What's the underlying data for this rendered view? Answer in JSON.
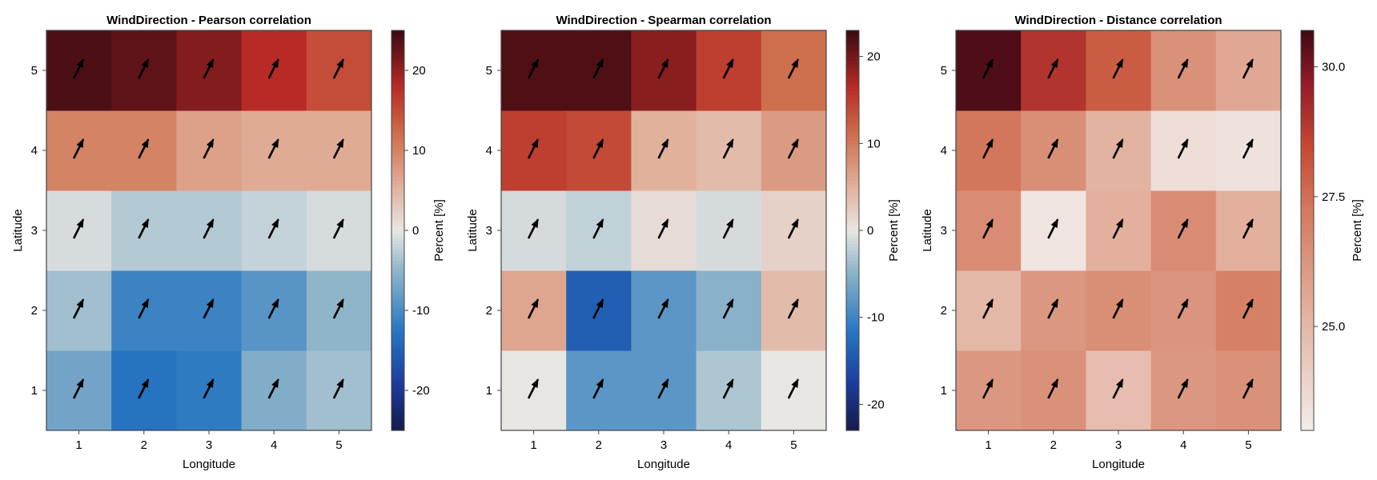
{
  "chart_data": [
    {
      "type": "heatmap",
      "title": "WindDirection - Pearson correlation",
      "xlabel": "Longitude",
      "ylabel": "Latitude",
      "x": [
        1,
        2,
        3,
        4,
        5
      ],
      "y": [
        1,
        2,
        3,
        4,
        5
      ],
      "x_ticks": [
        "1",
        "2",
        "3",
        "4",
        "5"
      ],
      "y_ticks": [
        "1",
        "2",
        "3",
        "4",
        "5"
      ],
      "values": [
        [
          -7,
          -13,
          -12,
          -6,
          -4
        ],
        [
          -4,
          -11,
          -11,
          -9,
          -5
        ],
        [
          -1,
          -3,
          -3,
          -2,
          -1
        ],
        [
          10,
          10,
          7,
          6,
          6
        ],
        [
          24,
          23,
          21,
          18,
          15
        ]
      ],
      "colorbar": {
        "label": "Percent [%]",
        "range": [
          -25,
          25
        ],
        "ticks": [
          -20,
          -10,
          0,
          10,
          20
        ],
        "tick_labels": [
          "-20",
          "-10",
          "0",
          "10",
          "20"
        ]
      },
      "colormap": "diverging blue-white-red",
      "arrows": "wind direction arrows in every cell pointing toward the upper right"
    },
    {
      "type": "heatmap",
      "title": "WindDirection - Spearman correlation",
      "xlabel": "Longitude",
      "ylabel": "",
      "x": [
        1,
        2,
        3,
        4,
        5
      ],
      "y": [
        1,
        2,
        3,
        4,
        5
      ],
      "x_ticks": [
        "1",
        "2",
        "3",
        "4",
        "5"
      ],
      "y_ticks": [
        "1",
        "2",
        "3",
        "4",
        "5"
      ],
      "values": [
        [
          0,
          -8,
          -8,
          -3,
          0
        ],
        [
          6,
          -14,
          -8,
          -5,
          4
        ],
        [
          -1,
          -2,
          1,
          -1,
          2
        ],
        [
          15,
          14,
          5,
          4,
          7
        ],
        [
          22,
          22,
          19,
          15,
          11
        ]
      ],
      "colorbar": {
        "label": "Percent [%]",
        "range": [
          -23,
          23
        ],
        "ticks": [
          -20,
          -10,
          0,
          10,
          20
        ],
        "tick_labels": [
          "-20",
          "-10",
          "0",
          "10",
          "20"
        ]
      },
      "colormap": "diverging blue-white-red",
      "arrows": "wind direction arrows in every cell pointing toward the upper right"
    },
    {
      "type": "heatmap",
      "title": "WindDirection - Distance correlation",
      "xlabel": "Longitude",
      "ylabel": "Latitude",
      "x": [
        1,
        2,
        3,
        4,
        5
      ],
      "y": [
        1,
        2,
        3,
        4,
        5
      ],
      "x_ticks": [
        "1",
        "2",
        "3",
        "4",
        "5"
      ],
      "y_ticks": [
        "1",
        "2",
        "3",
        "4",
        "5"
      ],
      "values": [
        [
          26.2,
          26.4,
          24.8,
          26.2,
          26.4
        ],
        [
          25.0,
          26.2,
          26.5,
          26.3,
          27.0
        ],
        [
          26.6,
          23.3,
          25.3,
          26.6,
          25.3
        ],
        [
          27.3,
          26.5,
          25.2,
          23.6,
          23.4
        ],
        [
          30.5,
          29.0,
          28.0,
          26.4,
          25.6
        ]
      ],
      "colorbar": {
        "label": "Percent [%]",
        "range": [
          23.0,
          30.7
        ],
        "ticks": [
          25.0,
          27.5,
          30.0
        ],
        "tick_labels": [
          "25.0",
          "27.5",
          "30.0"
        ]
      },
      "colormap": "sequential white-red",
      "arrows": "wind direction arrows in every cell pointing toward the upper right"
    }
  ]
}
